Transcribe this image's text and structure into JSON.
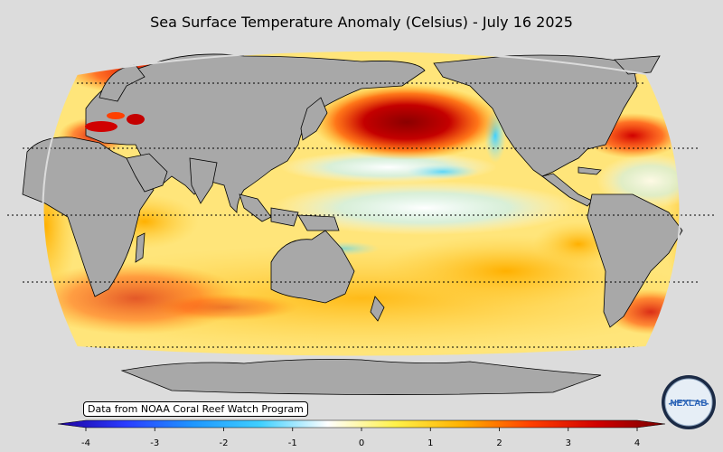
{
  "title": "Sea Surface Temperature Anomaly (Celsius) - July 16 2025",
  "source_label": "Data from NOAA Coral Reef Watch Program",
  "logo_text": "NEXLAB",
  "colorbar": {
    "min": -4,
    "max": 4,
    "ticks": [
      "-4",
      "-3",
      "-2",
      "-1",
      "0",
      "1",
      "2",
      "3",
      "4"
    ],
    "colors": [
      "#1e00a0",
      "#2a3cff",
      "#1e96ff",
      "#3fd0ff",
      "#ffffff",
      "#fff24a",
      "#ffb000",
      "#ff4000",
      "#d00000",
      "#780000"
    ]
  },
  "map": {
    "projection": "Robinson (Pacific-centered)",
    "ocean_base_color": "#ffe57a",
    "land_color": "#a8a8a8",
    "graticule_latitudes": [
      60,
      30,
      0,
      -30,
      -60
    ],
    "anomaly_regions": [
      {
        "name": "North Pacific marine heatwave",
        "anomaly": 4
      },
      {
        "name": "Northwest Atlantic",
        "anomaly": 3
      },
      {
        "name": "Mediterranean Sea",
        "anomaly": 3.5
      },
      {
        "name": "Equatorial Pacific cool tongue",
        "anomaly": -0.5
      },
      {
        "name": "Southern Ocean",
        "anomaly": 0.5
      }
    ]
  }
}
